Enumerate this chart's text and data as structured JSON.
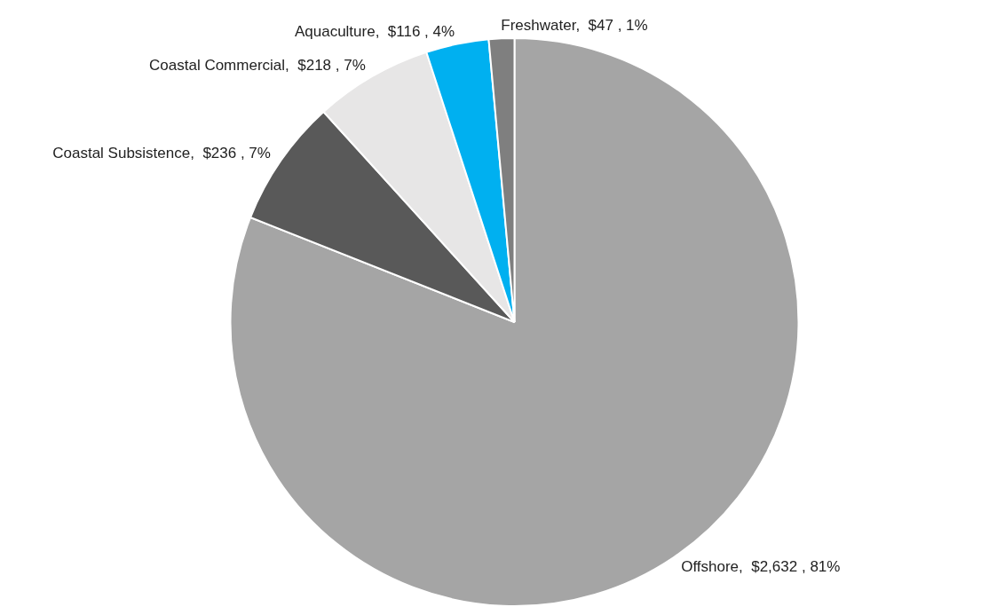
{
  "chart_data": {
    "type": "pie",
    "categories": [
      "Offshore",
      "Coastal Subsistence",
      "Coastal Commercial",
      "Aquaculture",
      "Freshwater"
    ],
    "values": [
      2632,
      236,
      218,
      116,
      47
    ],
    "colors": [
      "#a5a5a5",
      "#595959",
      "#e7e6e6",
      "#00b0f0",
      "#7f7f7f"
    ],
    "value_labels": [
      "$2,632 , 81%",
      "$236 , 7%",
      "$218 , 7%",
      "$116 , 4%",
      "$47 , 1%"
    ],
    "legend": false
  }
}
